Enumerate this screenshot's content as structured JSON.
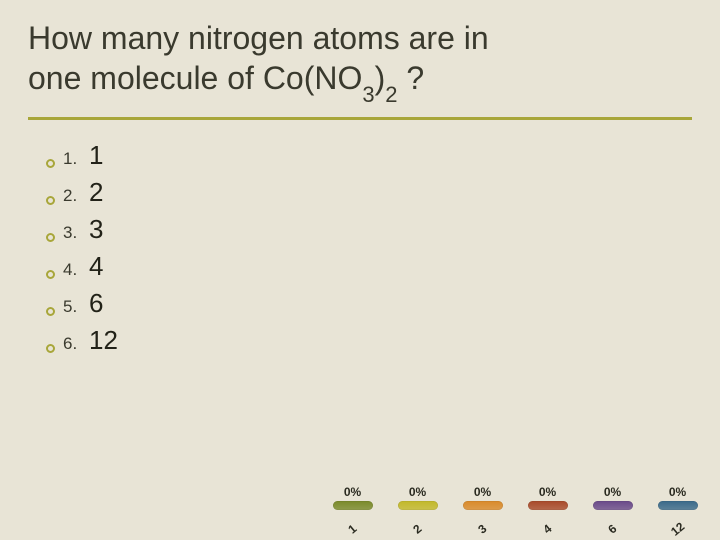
{
  "question": {
    "line1": "How many nitrogen atoms are in",
    "line2_pre": "one molecule of Co(NO",
    "line2_sub1": "3",
    "line2_mid": ")",
    "line2_sub2": "2",
    "line2_post": " ?"
  },
  "title_color": "#3a3a2e",
  "underline_color": "#a8a63a",
  "ring_color": "#a8a63a",
  "option_numeral_fontsize": 17,
  "option_value_fontsize": 26,
  "options": [
    {
      "numeral": "1.",
      "value": "1"
    },
    {
      "numeral": "2.",
      "value": "2"
    },
    {
      "numeral": "3.",
      "value": "3"
    },
    {
      "numeral": "4.",
      "value": "4"
    },
    {
      "numeral": "5.",
      "value": "6"
    },
    {
      "numeral": "6.",
      "value": "12"
    }
  ],
  "chart": {
    "type": "bar",
    "pct_fontsize": 12,
    "label_fontsize": 12,
    "label_rotation_deg": -40,
    "pill_width": 40,
    "pill_height": 9,
    "bars": [
      {
        "pct": "0%",
        "label": "1",
        "color": "#7a8a2a"
      },
      {
        "pct": "0%",
        "label": "2",
        "color": "#c2b82a"
      },
      {
        "pct": "0%",
        "label": "3",
        "color": "#d98a2a"
      },
      {
        "pct": "0%",
        "label": "4",
        "color": "#a84a2a"
      },
      {
        "pct": "0%",
        "label": "6",
        "color": "#6a4a8a"
      },
      {
        "pct": "0%",
        "label": "12",
        "color": "#3a6a8a"
      }
    ]
  },
  "background_color": "#e8e4d6"
}
